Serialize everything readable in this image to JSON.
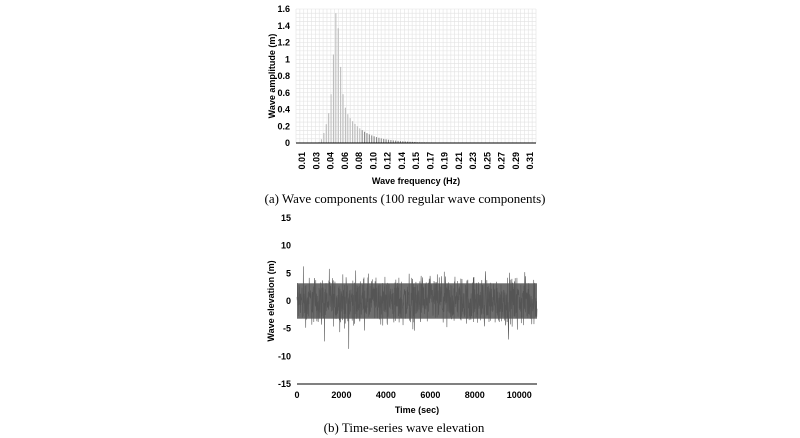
{
  "chart_data": [
    {
      "type": "bar",
      "caption": "(a) Wave components (100 regular wave components)",
      "xlabel": "Wave frequency (Hz)",
      "ylabel": "Wave amplitude (m)",
      "ylim": [
        0,
        1.6
      ],
      "yticks": [
        "0",
        "0.2",
        "0.4",
        "0.6",
        "0.8",
        "1",
        "1.2",
        "1.4",
        "1.6"
      ],
      "xticks": [
        "0.01",
        "0.03",
        "0.04",
        "0.06",
        "0.08",
        "0.10",
        "0.12",
        "0.14",
        "0.15",
        "0.17",
        "0.19",
        "0.21",
        "0.23",
        "0.25",
        "0.27",
        "0.29",
        "0.31"
      ],
      "xlim": [
        0.01,
        0.32
      ],
      "grid": true,
      "series_color": "#bdbdbd",
      "highlight_color": "#8a8a8a",
      "peak_frequency": 0.062,
      "peak_amplitude": 1.55,
      "component_count": 100
    },
    {
      "type": "line",
      "caption": "(b) Time-series wave elevation",
      "xlabel": "Time (sec)",
      "ylabel": "Wave elevation (m)",
      "xlim": [
        0,
        10800
      ],
      "ylim": [
        -15,
        15
      ],
      "xticks": [
        "0",
        "2000",
        "4000",
        "6000",
        "8000",
        "10000"
      ],
      "yticks": [
        "-15",
        "-10",
        "-5",
        "0",
        "5",
        "10",
        "15"
      ],
      "grid": false,
      "series_color": "#555555",
      "approx_envelope": [
        -9,
        9
      ]
    }
  ]
}
